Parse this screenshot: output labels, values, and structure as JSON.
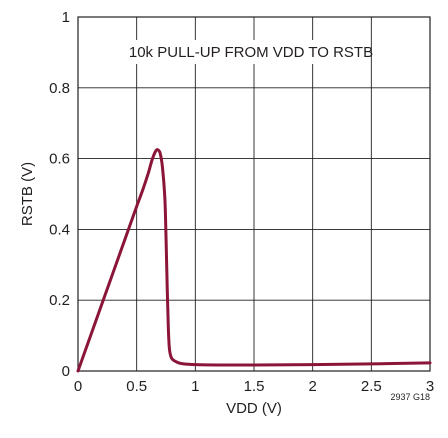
{
  "chart_data": {
    "type": "line",
    "title": "",
    "xlabel": "VDD (V)",
    "ylabel": "RSTB (V)",
    "xlim": [
      0,
      3
    ],
    "ylim": [
      0,
      1
    ],
    "x_ticks": [
      0,
      0.5,
      1,
      1.5,
      2,
      2.5,
      3
    ],
    "x_tick_labels": [
      "0",
      "0.5",
      "1",
      "1.5",
      "2",
      "2.5",
      "3"
    ],
    "y_ticks": [
      0,
      0.2,
      0.4,
      0.6,
      0.8,
      1
    ],
    "y_tick_labels": [
      "0",
      "0.2",
      "0.4",
      "0.6",
      "0.8",
      "1"
    ],
    "grid": true,
    "annotation": "10k PULL-UP FROM VDD TO RSTB",
    "figure_code": "2937 G18",
    "series": [
      {
        "color": "#8b1538",
        "x": [
          0,
          0.1,
          0.2,
          0.3,
          0.4,
          0.5,
          0.55,
          0.6,
          0.63,
          0.66,
          0.68,
          0.7,
          0.72,
          0.74,
          0.75,
          0.76,
          0.77,
          0.78,
          0.8,
          0.85,
          0.9,
          1.0,
          1.2,
          1.5,
          2.0,
          2.5,
          3.0
        ],
        "y": [
          0,
          0.093,
          0.186,
          0.279,
          0.372,
          0.465,
          0.51,
          0.56,
          0.595,
          0.62,
          0.625,
          0.615,
          0.575,
          0.49,
          0.38,
          0.24,
          0.12,
          0.06,
          0.035,
          0.024,
          0.02,
          0.018,
          0.017,
          0.017,
          0.018,
          0.02,
          0.023
        ]
      }
    ]
  }
}
